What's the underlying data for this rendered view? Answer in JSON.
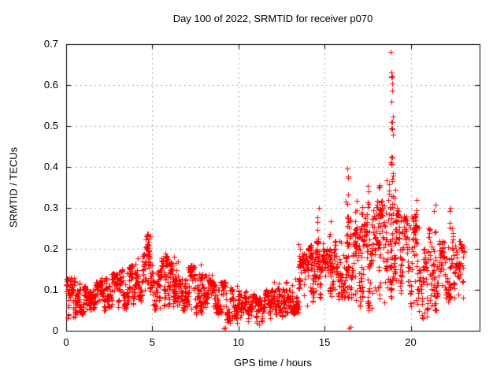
{
  "chart_data": {
    "type": "scatter",
    "title": "Day 100 of 2022, SRMTID for receiver p070",
    "xlabel": "GPS time / hours",
    "ylabel": "SRMTID / TECUs",
    "xlim": [
      0,
      24
    ],
    "ylim": [
      0,
      0.7
    ],
    "x_ticks": [
      0,
      5,
      10,
      15,
      20
    ],
    "y_ticks": [
      0,
      0.1,
      0.2,
      0.3,
      0.4,
      0.5,
      0.6,
      0.7
    ],
    "grid": true,
    "grid_color": "#a8a8a8",
    "border_color": "#000000",
    "marker": "plus",
    "marker_color": "#ff0000",
    "legend": "none",
    "notable_points": [
      {
        "x": 18.9,
        "y": 0.685,
        "note": "maximum spike"
      },
      {
        "x": 16.3,
        "y": 0.43,
        "note": "secondary spike"
      },
      {
        "x": 14.6,
        "y": 0.31,
        "note": "spike"
      },
      {
        "x": 4.8,
        "y": 0.24,
        "note": "morning bump peak"
      },
      {
        "x": 21.4,
        "y": 0.315,
        "note": "late spike"
      },
      {
        "x": 11.2,
        "y": 0.02,
        "note": "daily minimum band"
      }
    ],
    "bands": [
      [
        0.0,
        0.5,
        0.03,
        0.13,
        45
      ],
      [
        0.5,
        1.0,
        0.04,
        0.12,
        45
      ],
      [
        1.0,
        1.5,
        0.05,
        0.11,
        45
      ],
      [
        1.5,
        2.0,
        0.04,
        0.12,
        45
      ],
      [
        2.0,
        2.5,
        0.05,
        0.13,
        45
      ],
      [
        2.5,
        3.0,
        0.04,
        0.14,
        45
      ],
      [
        3.0,
        3.5,
        0.05,
        0.15,
        45
      ],
      [
        3.5,
        4.0,
        0.06,
        0.16,
        45
      ],
      [
        4.0,
        4.5,
        0.07,
        0.19,
        45
      ],
      [
        4.5,
        5.0,
        0.09,
        0.24,
        45
      ],
      [
        5.0,
        5.5,
        0.05,
        0.15,
        40
      ],
      [
        5.5,
        6.0,
        0.06,
        0.18,
        40
      ],
      [
        6.0,
        6.5,
        0.06,
        0.17,
        42
      ],
      [
        6.5,
        7.0,
        0.05,
        0.13,
        42
      ],
      [
        7.0,
        7.5,
        0.05,
        0.16,
        42
      ],
      [
        7.5,
        8.0,
        0.04,
        0.14,
        42
      ],
      [
        8.0,
        8.5,
        0.05,
        0.14,
        42
      ],
      [
        8.5,
        9.0,
        0.04,
        0.12,
        42
      ],
      [
        9.0,
        9.5,
        0.02,
        0.12,
        40
      ],
      [
        9.5,
        10.0,
        0.03,
        0.11,
        40
      ],
      [
        10.0,
        10.5,
        0.03,
        0.1,
        40
      ],
      [
        10.5,
        11.0,
        0.02,
        0.09,
        40
      ],
      [
        11.0,
        11.5,
        0.02,
        0.08,
        40
      ],
      [
        11.5,
        12.0,
        0.03,
        0.1,
        40
      ],
      [
        12.0,
        12.5,
        0.04,
        0.12,
        42
      ],
      [
        12.5,
        13.0,
        0.03,
        0.12,
        42
      ],
      [
        13.0,
        13.5,
        0.04,
        0.14,
        42
      ],
      [
        13.5,
        14.0,
        0.06,
        0.19,
        42
      ],
      [
        14.0,
        14.5,
        0.07,
        0.21,
        42
      ],
      [
        14.5,
        15.0,
        0.08,
        0.22,
        42
      ],
      [
        15.0,
        15.5,
        0.08,
        0.2,
        40
      ],
      [
        15.5,
        16.0,
        0.07,
        0.22,
        40
      ],
      [
        16.0,
        16.5,
        0.08,
        0.28,
        40
      ],
      [
        16.5,
        17.0,
        0.06,
        0.25,
        40
      ],
      [
        17.0,
        17.5,
        0.06,
        0.28,
        40
      ],
      [
        17.5,
        18.0,
        0.05,
        0.3,
        40
      ],
      [
        18.0,
        18.5,
        0.05,
        0.32,
        40
      ],
      [
        18.5,
        19.0,
        0.08,
        0.4,
        40
      ],
      [
        19.0,
        19.5,
        0.06,
        0.3,
        40
      ],
      [
        19.5,
        20.0,
        0.05,
        0.28,
        40
      ],
      [
        20.0,
        20.5,
        0.06,
        0.28,
        40
      ],
      [
        20.5,
        21.0,
        0.03,
        0.2,
        40
      ],
      [
        21.0,
        21.5,
        0.05,
        0.25,
        40
      ],
      [
        21.5,
        22.0,
        0.05,
        0.22,
        40
      ],
      [
        22.0,
        22.5,
        0.07,
        0.25,
        40
      ],
      [
        22.5,
        23.1,
        0.08,
        0.22,
        40
      ]
    ],
    "columns": [
      [
        4.8,
        0.1,
        0.24,
        12
      ],
      [
        5.75,
        0.07,
        0.2,
        8
      ],
      [
        6.3,
        0.07,
        0.19,
        8
      ],
      [
        7.8,
        0.05,
        0.17,
        8
      ],
      [
        13.55,
        0.06,
        0.22,
        10
      ],
      [
        14.25,
        0.08,
        0.22,
        10
      ],
      [
        14.62,
        0.1,
        0.31,
        14
      ],
      [
        15.3,
        0.09,
        0.27,
        10
      ],
      [
        16.3,
        0.1,
        0.43,
        20
      ],
      [
        16.85,
        0.08,
        0.33,
        10
      ],
      [
        17.15,
        0.06,
        0.35,
        12
      ],
      [
        17.55,
        0.06,
        0.37,
        14
      ],
      [
        18.2,
        0.05,
        0.38,
        14
      ],
      [
        18.9,
        0.28,
        0.685,
        26
      ],
      [
        18.85,
        0.08,
        0.3,
        12
      ],
      [
        19.1,
        0.08,
        0.45,
        10
      ],
      [
        19.45,
        0.06,
        0.3,
        10
      ],
      [
        20.3,
        0.06,
        0.32,
        12
      ],
      [
        21.4,
        0.06,
        0.315,
        14
      ],
      [
        22.3,
        0.07,
        0.3,
        10
      ]
    ],
    "outliers": [
      [
        9.15,
        0.005
      ],
      [
        9.22,
        0.008
      ],
      [
        9.5,
        0.02
      ],
      [
        9.9,
        0.02
      ],
      [
        11.2,
        0.015
      ],
      [
        16.42,
        0.005
      ],
      [
        16.5,
        0.01
      ],
      [
        20.7,
        0.03
      ],
      [
        23.0,
        0.12
      ],
      [
        23.05,
        0.18
      ]
    ]
  }
}
